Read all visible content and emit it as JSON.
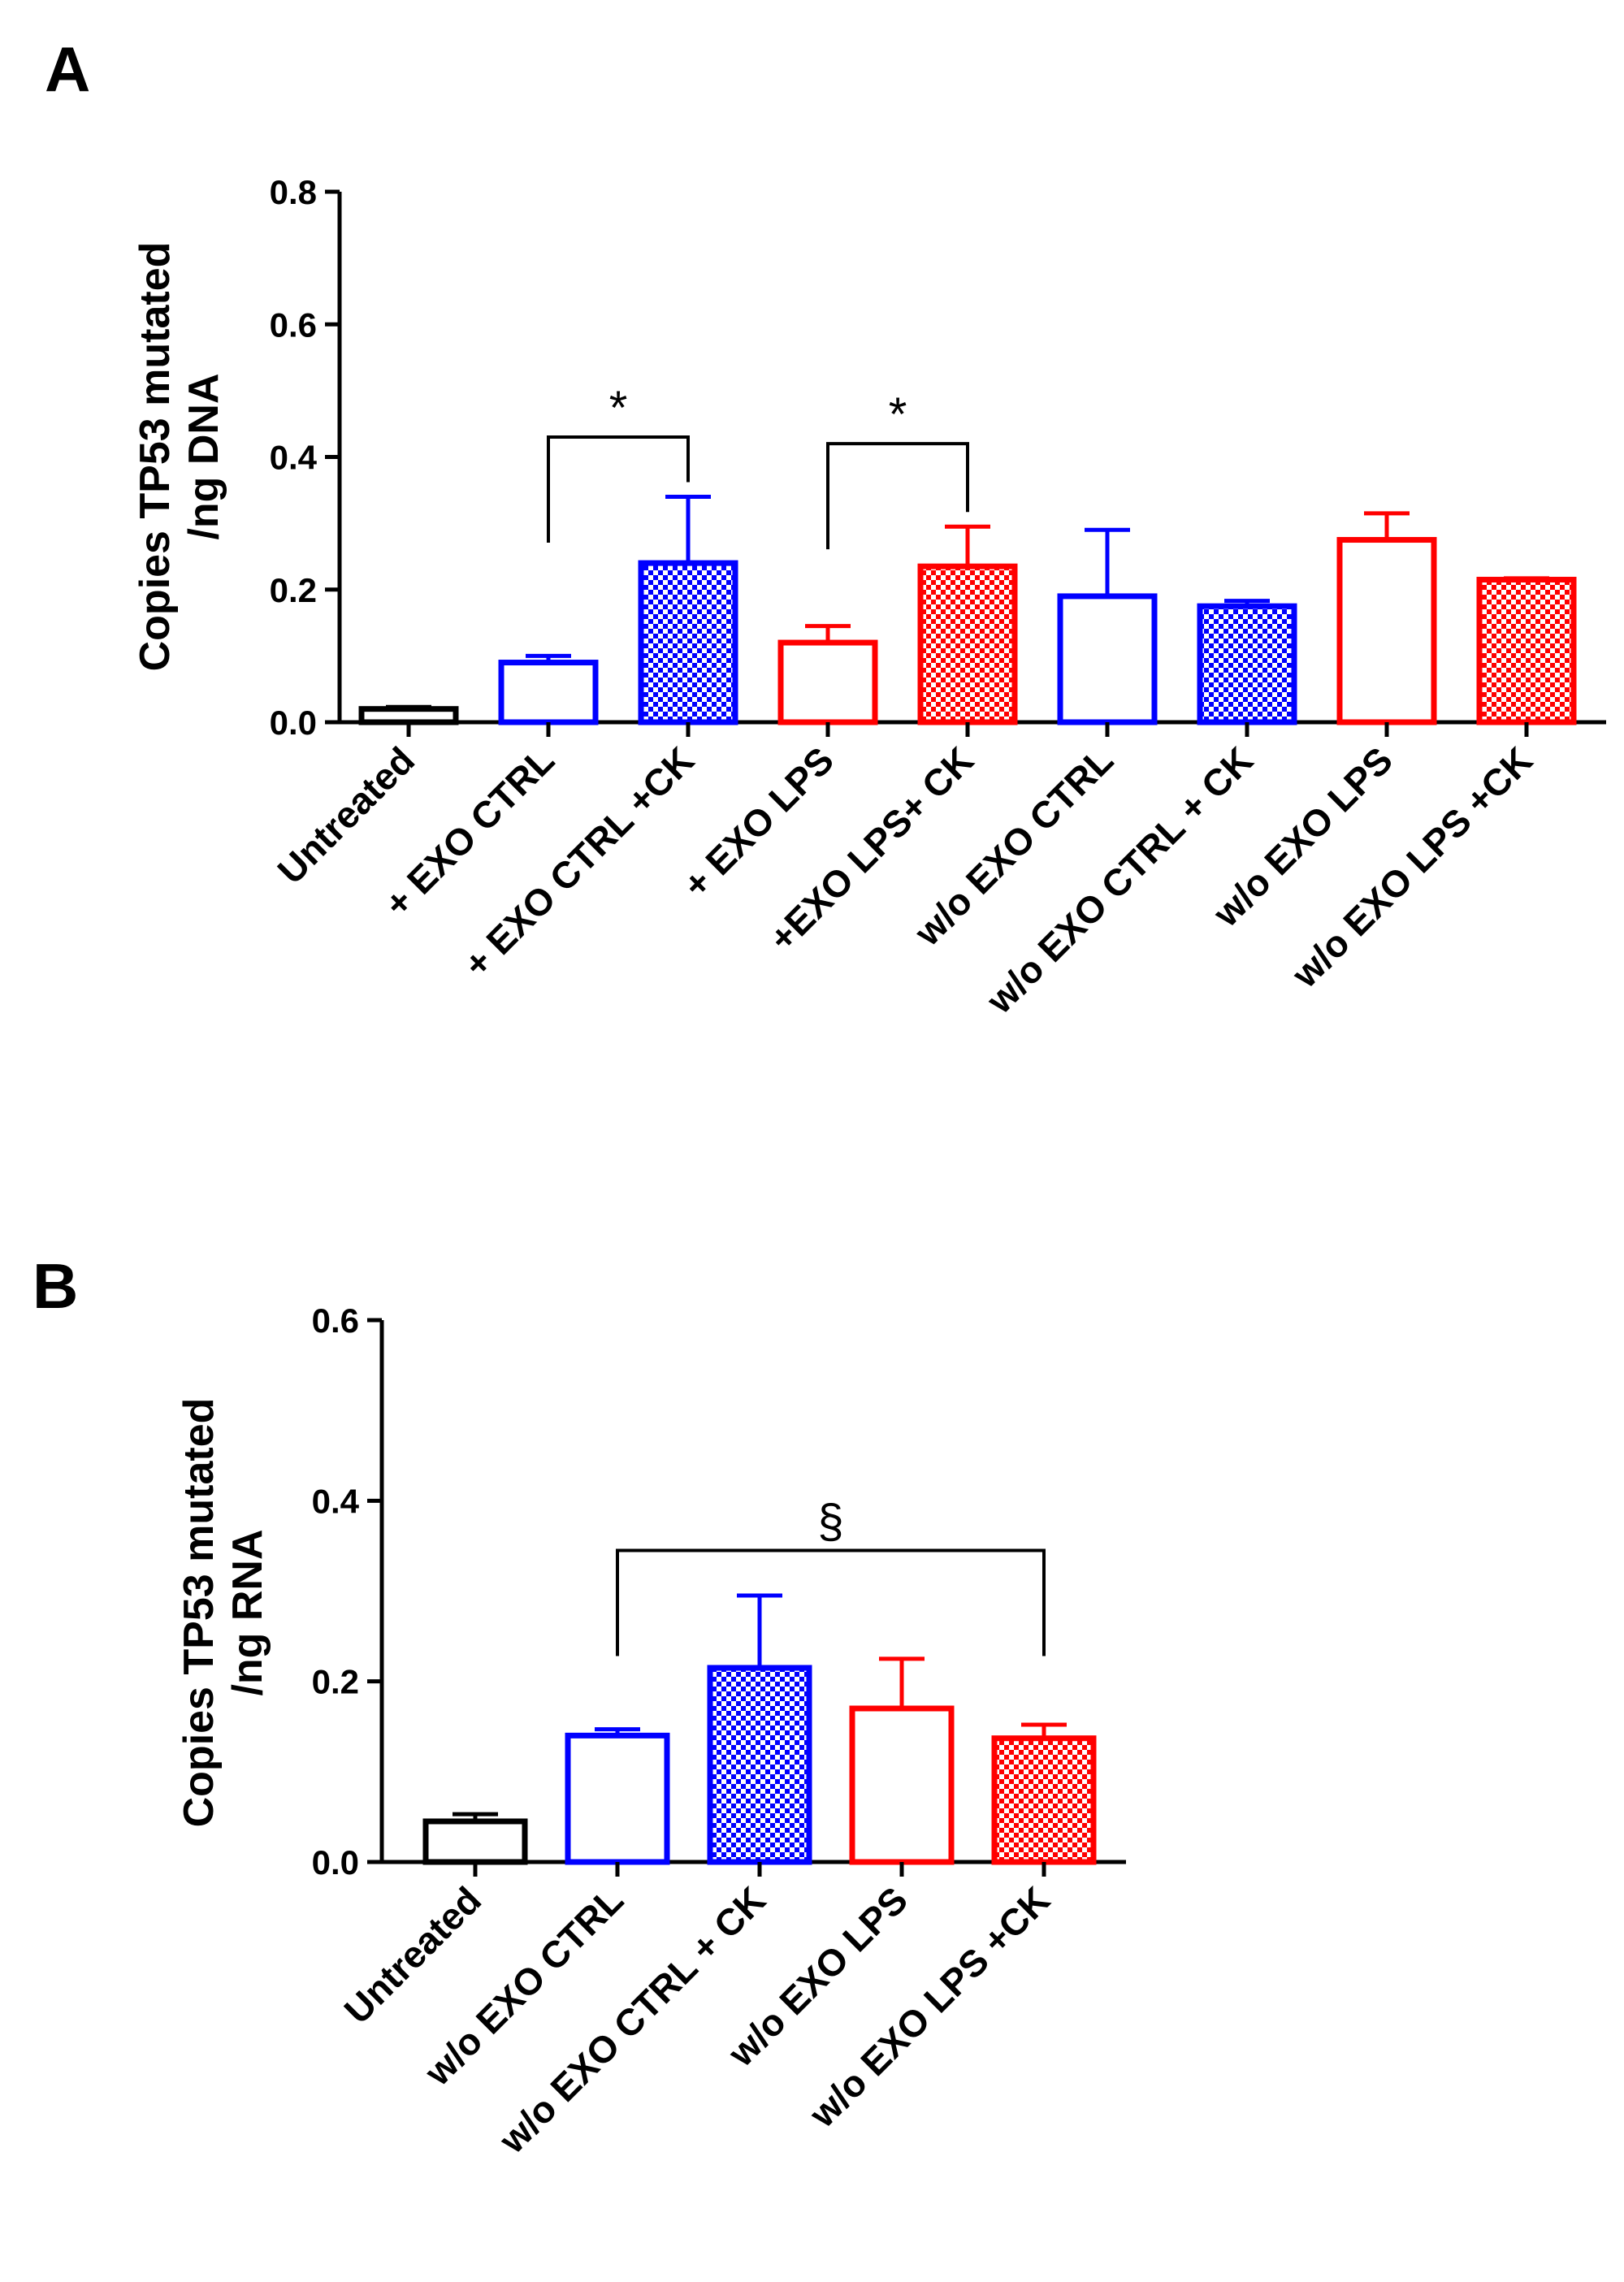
{
  "colors": {
    "black": "#000000",
    "blue": "#0000ff",
    "red": "#ff0000"
  },
  "chart_data": [
    {
      "panel": "A",
      "type": "bar",
      "ylabel_line1": "Copies TP53 mutated",
      "ylabel_line2": "/ng DNA",
      "ylim": [
        0,
        0.8
      ],
      "yticks": [
        0.0,
        0.2,
        0.4,
        0.6,
        0.8
      ],
      "ytick_labels": [
        "0.0",
        "0.2",
        "0.4",
        "0.6",
        "0.8"
      ],
      "categories": [
        "Untreated",
        "+ EXO CTRL",
        "+ EXO CTRL +CK",
        "+ EXO LPS",
        "+EXO LPS+ CK",
        "w/o EXO CTRL",
        "w/o EXO CTRL + CK",
        "w/o EXO LPS",
        "w/o EXO LPS +CK"
      ],
      "values": [
        0.02,
        0.09,
        0.24,
        0.12,
        0.235,
        0.19,
        0.175,
        0.275,
        0.215
      ],
      "errors": [
        0.003,
        0.01,
        0.1,
        0.025,
        0.06,
        0.1,
        0.008,
        0.04,
        0.002
      ],
      "colors": [
        "black",
        "blue",
        "blue",
        "red",
        "red",
        "blue",
        "blue",
        "red",
        "red"
      ],
      "patterns": [
        "open",
        "open",
        "checker",
        "open",
        "checker",
        "open",
        "checker",
        "open",
        "checker"
      ],
      "significance": [
        {
          "from": 1,
          "to": 2,
          "at": 0.43,
          "label": "*"
        },
        {
          "from": 3,
          "to": 4,
          "at": 0.42,
          "label": "*"
        }
      ]
    },
    {
      "panel": "B",
      "type": "bar",
      "ylabel_line1": "Copies TP53 mutated",
      "ylabel_line2": "/ng RNA",
      "ylim": [
        0,
        0.6
      ],
      "yticks": [
        0.0,
        0.2,
        0.4,
        0.6
      ],
      "ytick_labels": [
        "0.0",
        "0.2",
        "0.4",
        "0.6"
      ],
      "categories": [
        "Untreated",
        "w/o EXO CTRL",
        "w/o EXO CTRL + CK",
        "w/o EXO LPS",
        "w/o EXO LPS +CK"
      ],
      "values": [
        0.045,
        0.14,
        0.215,
        0.17,
        0.137
      ],
      "errors": [
        0.008,
        0.007,
        0.08,
        0.055,
        0.015
      ],
      "colors": [
        "black",
        "blue",
        "blue",
        "red",
        "red"
      ],
      "patterns": [
        "open",
        "open",
        "checker",
        "open",
        "checker"
      ],
      "significance": [
        {
          "from": 1,
          "to": 4,
          "at": 0.345,
          "label": "§"
        }
      ]
    }
  ]
}
